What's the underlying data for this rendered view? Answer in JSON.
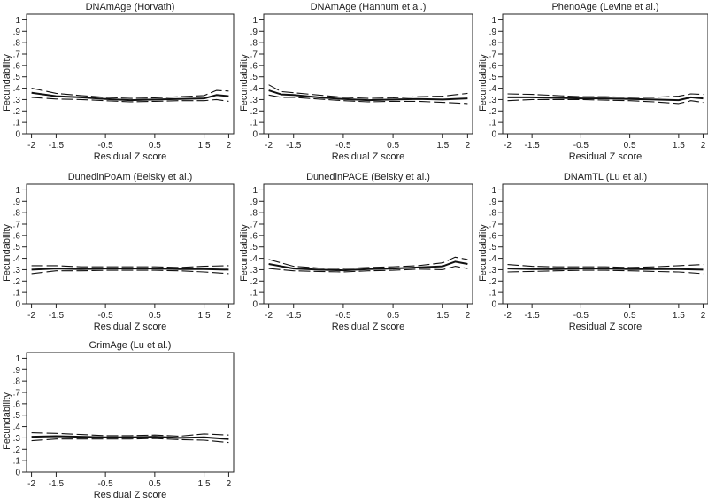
{
  "figure": {
    "ylabel": "Fecundability",
    "xlabel": "Residual Z score"
  },
  "axis": {
    "x_ticks": [
      -2,
      -1.5,
      -0.5,
      0.5,
      1.5,
      2
    ],
    "x_tick_labels": [
      "-2",
      "-1.5",
      "-0.5",
      "0.5",
      "1.5",
      "2"
    ],
    "y_ticks": [
      0,
      0.1,
      0.2,
      0.3,
      0.4,
      0.5,
      0.6,
      0.7,
      0.8,
      0.9,
      1
    ],
    "y_tick_labels": [
      "0",
      ".1",
      ".2",
      ".3",
      ".4",
      ".5",
      ".6",
      ".7",
      ".8",
      ".9",
      "1"
    ],
    "xlim": [
      -2.1,
      2.1
    ],
    "ylim": [
      0,
      1.05
    ]
  },
  "colors": {
    "line": "#111111",
    "frame": "#222222",
    "background": "#ffffff"
  },
  "chart_data": [
    {
      "type": "line",
      "title": "DNAmAge (Horvath)",
      "xlabel": "Residual Z score",
      "ylabel": "Fecundability",
      "x": [
        -2,
        -1.5,
        -1,
        -0.5,
        0,
        0.5,
        1,
        1.5,
        1.75,
        2
      ],
      "series": [
        {
          "name": "estimate",
          "values": [
            0.36,
            0.33,
            0.32,
            0.305,
            0.295,
            0.3,
            0.305,
            0.31,
            0.34,
            0.33
          ]
        },
        {
          "name": "upper",
          "values": [
            0.4,
            0.355,
            0.335,
            0.32,
            0.31,
            0.315,
            0.325,
            0.335,
            0.38,
            0.375
          ]
        },
        {
          "name": "lower",
          "values": [
            0.32,
            0.305,
            0.3,
            0.29,
            0.28,
            0.285,
            0.29,
            0.29,
            0.3,
            0.285
          ]
        }
      ]
    },
    {
      "type": "line",
      "title": "DNAmAge (Hannum et al.)",
      "xlabel": "Residual Z score",
      "ylabel": "Fecundability",
      "x": [
        -2,
        -1.75,
        -1.5,
        -1,
        -0.5,
        0,
        0.5,
        1,
        1.5,
        2
      ],
      "series": [
        {
          "name": "estimate",
          "values": [
            0.38,
            0.345,
            0.34,
            0.32,
            0.305,
            0.295,
            0.3,
            0.305,
            0.3,
            0.31
          ]
        },
        {
          "name": "upper",
          "values": [
            0.43,
            0.37,
            0.36,
            0.34,
            0.32,
            0.31,
            0.315,
            0.325,
            0.33,
            0.355
          ]
        },
        {
          "name": "lower",
          "values": [
            0.34,
            0.32,
            0.32,
            0.305,
            0.29,
            0.28,
            0.285,
            0.285,
            0.275,
            0.265
          ]
        }
      ]
    },
    {
      "type": "line",
      "title": "PhenoAge (Levine et al.)",
      "xlabel": "Residual Z score",
      "ylabel": "Fecundability",
      "x": [
        -2,
        -1.5,
        -1,
        -0.5,
        0,
        0.5,
        1,
        1.5,
        1.75,
        2
      ],
      "series": [
        {
          "name": "estimate",
          "values": [
            0.32,
            0.32,
            0.315,
            0.31,
            0.31,
            0.305,
            0.3,
            0.295,
            0.32,
            0.31
          ]
        },
        {
          "name": "upper",
          "values": [
            0.35,
            0.345,
            0.335,
            0.325,
            0.325,
            0.32,
            0.32,
            0.33,
            0.35,
            0.345
          ]
        },
        {
          "name": "lower",
          "values": [
            0.29,
            0.3,
            0.3,
            0.3,
            0.295,
            0.29,
            0.28,
            0.265,
            0.29,
            0.275
          ]
        }
      ]
    },
    {
      "type": "line",
      "title": "DunedinPoAm (Belsky et al.)",
      "xlabel": "Residual Z score",
      "ylabel": "Fecundability",
      "x": [
        -2,
        -1.5,
        -1,
        -0.5,
        0,
        0.5,
        1,
        1.5,
        2
      ],
      "series": [
        {
          "name": "estimate",
          "values": [
            0.3,
            0.31,
            0.305,
            0.31,
            0.31,
            0.31,
            0.305,
            0.305,
            0.3
          ]
        },
        {
          "name": "upper",
          "values": [
            0.335,
            0.335,
            0.325,
            0.325,
            0.325,
            0.325,
            0.32,
            0.33,
            0.335
          ]
        },
        {
          "name": "lower",
          "values": [
            0.265,
            0.29,
            0.29,
            0.295,
            0.295,
            0.295,
            0.29,
            0.28,
            0.265
          ]
        }
      ]
    },
    {
      "type": "line",
      "title": "DunedinPACE (Belsky et al.)",
      "xlabel": "Residual Z score",
      "ylabel": "Fecundability",
      "x": [
        -2,
        -1.5,
        -1,
        -0.5,
        0,
        0.5,
        1,
        1.5,
        1.75,
        2
      ],
      "series": [
        {
          "name": "estimate",
          "values": [
            0.35,
            0.31,
            0.3,
            0.295,
            0.305,
            0.31,
            0.32,
            0.33,
            0.37,
            0.35
          ]
        },
        {
          "name": "upper",
          "values": [
            0.39,
            0.33,
            0.315,
            0.31,
            0.32,
            0.325,
            0.335,
            0.36,
            0.41,
            0.39
          ]
        },
        {
          "name": "lower",
          "values": [
            0.31,
            0.29,
            0.285,
            0.28,
            0.29,
            0.295,
            0.305,
            0.3,
            0.33,
            0.31
          ]
        }
      ]
    },
    {
      "type": "line",
      "title": "DNAmTL (Lu et al.)",
      "xlabel": "Residual Z score",
      "ylabel": "Fecundability",
      "x": [
        -2,
        -1.5,
        -1,
        -0.5,
        0,
        0.5,
        1,
        1.5,
        2
      ],
      "series": [
        {
          "name": "estimate",
          "values": [
            0.31,
            0.305,
            0.305,
            0.31,
            0.31,
            0.305,
            0.305,
            0.305,
            0.3
          ]
        },
        {
          "name": "upper",
          "values": [
            0.345,
            0.33,
            0.325,
            0.325,
            0.325,
            0.32,
            0.325,
            0.335,
            0.345
          ]
        },
        {
          "name": "lower",
          "values": [
            0.28,
            0.285,
            0.29,
            0.295,
            0.295,
            0.29,
            0.285,
            0.28,
            0.265
          ]
        }
      ]
    },
    {
      "type": "line",
      "title": "GrimAge (Lu et al.)",
      "xlabel": "Residual Z score",
      "ylabel": "Fecundability",
      "x": [
        -2,
        -1.5,
        -1,
        -0.5,
        0,
        0.5,
        1,
        1.5,
        2
      ],
      "series": [
        {
          "name": "estimate",
          "values": [
            0.31,
            0.315,
            0.31,
            0.305,
            0.305,
            0.31,
            0.3,
            0.305,
            0.29
          ]
        },
        {
          "name": "upper",
          "values": [
            0.345,
            0.34,
            0.33,
            0.32,
            0.32,
            0.325,
            0.315,
            0.335,
            0.325
          ]
        },
        {
          "name": "lower",
          "values": [
            0.275,
            0.29,
            0.29,
            0.29,
            0.29,
            0.295,
            0.285,
            0.28,
            0.26
          ]
        }
      ]
    }
  ]
}
